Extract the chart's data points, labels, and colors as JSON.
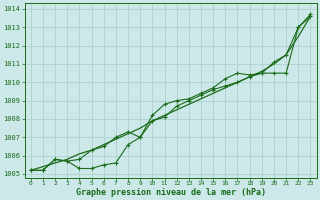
{
  "bg_color": "#cce8e8",
  "grid_color": "#aacccc",
  "line_color": "#1a6b1a",
  "marker_color": "#1a6b1a",
  "title": "Graphe pression niveau de la mer (hPa)",
  "ylim": [
    1004.8,
    1014.3
  ],
  "xlim": [
    -0.5,
    23.5
  ],
  "xticks": [
    0,
    1,
    2,
    3,
    4,
    5,
    6,
    7,
    8,
    9,
    10,
    11,
    12,
    13,
    14,
    15,
    16,
    17,
    18,
    19,
    20,
    21,
    22,
    23
  ],
  "yticks": [
    1005,
    1006,
    1007,
    1008,
    1009,
    1010,
    1011,
    1012,
    1013,
    1014
  ],
  "line_smooth_x": [
    0,
    1,
    2,
    3,
    4,
    5,
    6,
    7,
    8,
    9,
    10,
    11,
    12,
    13,
    14,
    15,
    16,
    17,
    18,
    19,
    20,
    21,
    22,
    23
  ],
  "line_smooth_y": [
    1005.2,
    1005.4,
    1005.6,
    1005.8,
    1006.1,
    1006.3,
    1006.6,
    1006.9,
    1007.2,
    1007.5,
    1007.9,
    1008.2,
    1008.5,
    1008.8,
    1009.1,
    1009.4,
    1009.7,
    1010.0,
    1010.3,
    1010.6,
    1011.0,
    1011.5,
    1012.5,
    1013.6
  ],
  "line_mid_x": [
    0,
    1,
    2,
    3,
    4,
    5,
    6,
    7,
    8,
    9,
    10,
    11,
    12,
    13,
    14,
    15,
    16,
    17,
    18,
    19,
    20,
    21,
    22,
    23
  ],
  "line_mid_y": [
    1005.2,
    1005.2,
    1005.8,
    1005.7,
    1005.3,
    1005.3,
    1005.5,
    1005.6,
    1006.6,
    1007.0,
    1007.9,
    1008.1,
    1008.7,
    1009.0,
    1009.3,
    1009.6,
    1009.8,
    1010.0,
    1010.3,
    1010.5,
    1011.1,
    1011.5,
    1013.0,
    1013.6
  ],
  "line_low_x": [
    0,
    1,
    2,
    3,
    4,
    5,
    6,
    7,
    8,
    9,
    10,
    11,
    12,
    13,
    14,
    15,
    16,
    17,
    18,
    19,
    20,
    21,
    22,
    23
  ],
  "line_low_y": [
    1005.2,
    1005.2,
    1005.8,
    1005.7,
    1005.8,
    1006.3,
    1006.5,
    1007.0,
    1007.3,
    1007.0,
    1008.2,
    1008.8,
    1009.0,
    1009.1,
    1009.4,
    1009.7,
    1010.2,
    1010.5,
    1010.4,
    1010.5,
    1010.5,
    1010.5,
    1013.0,
    1013.7
  ]
}
